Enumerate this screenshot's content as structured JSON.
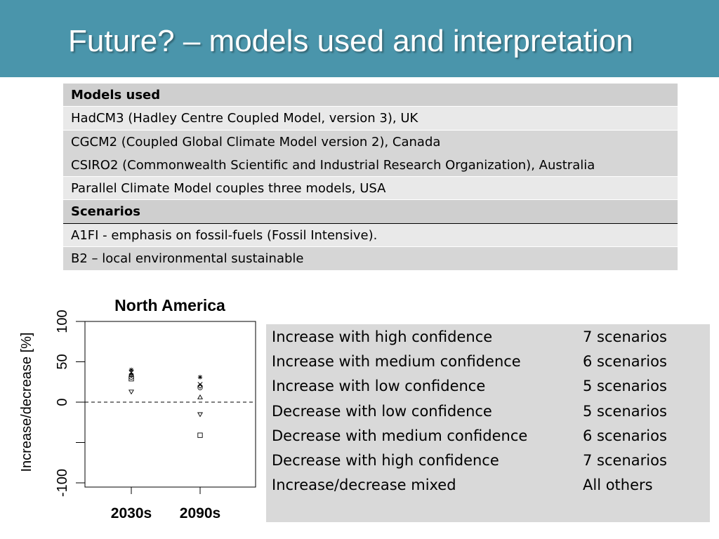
{
  "slide": {
    "title": "Future? – models used and interpretation",
    "accent_color": "#4a95ab"
  },
  "models_table": {
    "rows": [
      {
        "text": "Models used",
        "kind": "header"
      },
      {
        "text": "HadCM3 (Hadley Centre Coupled Model, version 3), UK",
        "kind": "body"
      },
      {
        "text": "CGCM2 (Coupled Global Climate Model version 2), Canada",
        "kind": "body"
      },
      {
        "text": "CSIRO2 (Commonwealth Scientific and Industrial Research Organization), Australia",
        "kind": "body"
      },
      {
        "text": "Parallel Climate Model couples three models, USA",
        "kind": "body"
      },
      {
        "text": "Scenarios",
        "kind": "header"
      },
      {
        "text": "A1FI - emphasis on fossil-fuels (Fossil Intensive).",
        "kind": "body"
      },
      {
        "text": "B2 – local environmental sustainable",
        "kind": "body"
      }
    ]
  },
  "chart_data": {
    "type": "scatter",
    "title": "North America",
    "ylabel": "Increase/decrease [%]",
    "xlabel": "",
    "categories": [
      "2030s",
      "2090s"
    ],
    "ylim": [
      -100,
      100
    ],
    "yticks": [
      100,
      50,
      0,
      -100
    ],
    "reference_line": 0,
    "grid": false,
    "points": [
      {
        "category": "2030s",
        "value": 40,
        "marker": "asterisk"
      },
      {
        "category": "2030s",
        "value": 37,
        "marker": "x"
      },
      {
        "category": "2030s",
        "value": 35,
        "marker": "plus"
      },
      {
        "category": "2030s",
        "value": 33,
        "marker": "diamond"
      },
      {
        "category": "2030s",
        "value": 31,
        "marker": "circle"
      },
      {
        "category": "2030s",
        "value": 29,
        "marker": "square"
      },
      {
        "category": "2030s",
        "value": 13,
        "marker": "triangle-down"
      },
      {
        "category": "2090s",
        "value": 31,
        "marker": "asterisk"
      },
      {
        "category": "2090s",
        "value": 22,
        "marker": "x"
      },
      {
        "category": "2090s",
        "value": 20,
        "marker": "diamond"
      },
      {
        "category": "2090s",
        "value": 18,
        "marker": "circle"
      },
      {
        "category": "2090s",
        "value": 6,
        "marker": "triangle-up"
      },
      {
        "category": "2090s",
        "value": -15,
        "marker": "triangle-down"
      },
      {
        "category": "2090s",
        "value": -41,
        "marker": "square"
      }
    ]
  },
  "confidence_legend": {
    "rows": [
      {
        "label": "Increase with high confidence",
        "count": "7 scenarios"
      },
      {
        "label": "Increase with medium confidence",
        "count": "6 scenarios"
      },
      {
        "label": "Increase with low confidence",
        "count": "5 scenarios"
      },
      {
        "label": "Decrease with low confidence",
        "count": "5 scenarios"
      },
      {
        "label": "Decrease with medium confidence",
        "count": "6 scenarios"
      },
      {
        "label": "Decrease with high confidence",
        "count": "7 scenarios"
      },
      {
        "label": "Increase/decrease mixed",
        "count": "All others"
      }
    ]
  }
}
